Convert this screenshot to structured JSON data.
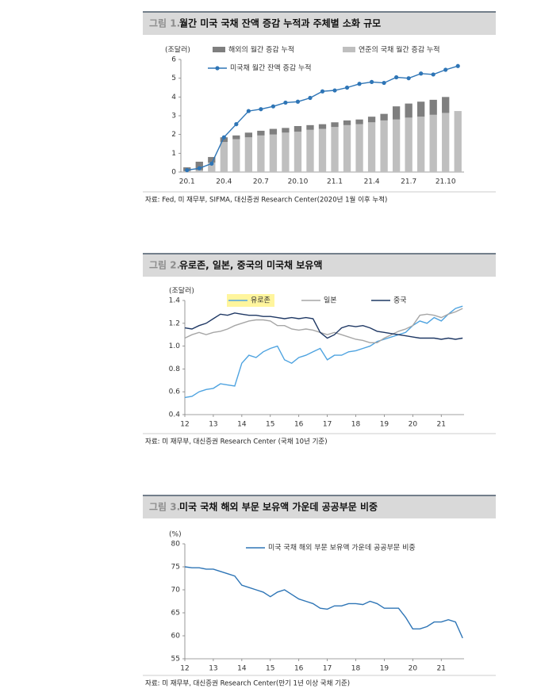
{
  "chart_data": [
    {
      "type": "bar",
      "figure_label": "그림 1.",
      "title": "월간 미국 국채 잔액 증감 누적과 주체별 소화 규모",
      "unit_label": "(조달러)",
      "source": "자료: Fed, 미 재무부, SIFMA, 대신증권 Research Center(2020년 1월 이후 누적)",
      "categories": [
        "20.1",
        null,
        null,
        "20.4",
        null,
        null,
        "20.7",
        null,
        null,
        "20.10",
        null,
        null,
        "21.1",
        null,
        null,
        "21.4",
        null,
        null,
        "21.7",
        null,
        null,
        "21.10",
        null
      ],
      "series": [
        {
          "name": "연준의 국채 월간 증감 누적",
          "type": "bar",
          "color": "#bfbfbf",
          "values": [
            0.05,
            0.1,
            0.5,
            1.6,
            1.75,
            1.85,
            1.95,
            2.0,
            2.1,
            2.15,
            2.25,
            2.3,
            2.4,
            2.5,
            2.55,
            2.65,
            2.75,
            2.8,
            2.9,
            2.95,
            3.05,
            3.15,
            3.25
          ]
        },
        {
          "name": "해외의 월간 증감 누적",
          "type": "bar",
          "color": "#7f7f7f",
          "values": [
            0.2,
            0.45,
            0.3,
            0.25,
            0.2,
            0.25,
            0.25,
            0.3,
            0.25,
            0.3,
            0.25,
            0.25,
            0.25,
            0.25,
            0.25,
            0.3,
            0.35,
            0.7,
            0.75,
            0.8,
            0.8,
            0.85,
            null
          ]
        },
        {
          "name": "미국채 월간 잔액 증감 누적",
          "type": "line",
          "markers": true,
          "color": "#2e75b6",
          "values": [
            0.1,
            0.2,
            0.45,
            1.85,
            2.55,
            3.25,
            3.35,
            3.5,
            3.7,
            3.75,
            3.95,
            4.3,
            4.35,
            4.5,
            4.7,
            4.8,
            4.75,
            5.05,
            5.0,
            5.25,
            5.2,
            5.45,
            5.65
          ]
        }
      ],
      "ylim": [
        0,
        6
      ],
      "yticks": [
        0,
        1,
        2,
        3,
        4,
        5,
        6
      ],
      "grid": false
    },
    {
      "type": "line",
      "figure_label": "그림 2.",
      "title": "유로존, 일본, 중국의 미국채 보유액",
      "unit_label": "(조달러)",
      "source": "자료: 미 재무부, 대신증권 Research Center (국채 10년 기준)",
      "x": [
        12,
        12.25,
        12.5,
        12.75,
        13,
        13.25,
        13.5,
        13.75,
        14,
        14.25,
        14.5,
        14.75,
        15,
        15.25,
        15.5,
        15.75,
        16,
        16.25,
        16.5,
        16.75,
        17,
        17.25,
        17.5,
        17.75,
        18,
        18.25,
        18.5,
        18.75,
        19,
        19.25,
        19.5,
        19.75,
        20,
        20.25,
        20.5,
        20.75,
        21,
        21.25,
        21.5,
        21.75
      ],
      "series": [
        {
          "name": "유로존",
          "color": "#4ea3e0",
          "values": [
            0.55,
            0.56,
            0.6,
            0.62,
            0.63,
            0.67,
            0.66,
            0.65,
            0.85,
            0.92,
            0.9,
            0.95,
            0.98,
            1.0,
            0.88,
            0.85,
            0.9,
            0.92,
            0.95,
            0.98,
            0.88,
            0.92,
            0.92,
            0.95,
            0.96,
            0.98,
            1.0,
            1.04,
            1.06,
            1.08,
            1.1,
            1.12,
            1.18,
            1.22,
            1.2,
            1.25,
            1.22,
            1.28,
            1.33,
            1.35
          ]
        },
        {
          "name": "일본",
          "color": "#a6a6a6",
          "values": [
            1.07,
            1.1,
            1.12,
            1.1,
            1.12,
            1.13,
            1.15,
            1.18,
            1.2,
            1.22,
            1.23,
            1.23,
            1.22,
            1.18,
            1.18,
            1.15,
            1.14,
            1.15,
            1.14,
            1.12,
            1.1,
            1.12,
            1.1,
            1.08,
            1.06,
            1.05,
            1.03,
            1.03,
            1.07,
            1.1,
            1.13,
            1.15,
            1.18,
            1.27,
            1.28,
            1.27,
            1.25,
            1.28,
            1.3,
            1.33
          ]
        },
        {
          "name": "중국",
          "color": "#1f3864",
          "values": [
            1.16,
            1.15,
            1.18,
            1.2,
            1.24,
            1.28,
            1.27,
            1.29,
            1.28,
            1.27,
            1.27,
            1.26,
            1.26,
            1.25,
            1.24,
            1.25,
            1.24,
            1.25,
            1.24,
            1.12,
            1.07,
            1.1,
            1.16,
            1.18,
            1.17,
            1.18,
            1.16,
            1.13,
            1.12,
            1.11,
            1.1,
            1.09,
            1.08,
            1.07,
            1.07,
            1.07,
            1.06,
            1.07,
            1.06,
            1.07
          ]
        }
      ],
      "xlim": [
        12,
        21.8
      ],
      "xticks": [
        12,
        13,
        14,
        15,
        16,
        17,
        18,
        19,
        20,
        21
      ],
      "ylim": [
        0.4,
        1.4
      ],
      "yticks": [
        0.4,
        0.6,
        0.8,
        {
          "value": 1.0,
          "label": "1.0"
        },
        1.2,
        1.4
      ],
      "grid": false
    },
    {
      "type": "line",
      "figure_label": "그림 3.",
      "title": "미국 국채 해외 부문 보유액 가운데 공공부문 비중",
      "unit_label": "(%)",
      "source": "자료: 미 재무부, 대신증권 Research Center(만기 1년 이상 국채 기준)",
      "x": [
        12,
        12.25,
        12.5,
        12.75,
        13,
        13.25,
        13.5,
        13.75,
        14,
        14.25,
        14.5,
        14.75,
        15,
        15.25,
        15.5,
        15.75,
        16,
        16.25,
        16.5,
        16.75,
        17,
        17.25,
        17.5,
        17.75,
        18,
        18.25,
        18.5,
        18.75,
        19,
        19.25,
        19.5,
        19.75,
        20,
        20.25,
        20.5,
        20.75,
        21,
        21.25,
        21.5,
        21.75
      ],
      "series": [
        {
          "name": "미국 국채 해외 부문 보유액 가운데 공공부문 비중",
          "color": "#2e75b6",
          "values": [
            75,
            74.8,
            74.8,
            74.5,
            74.5,
            74,
            73.5,
            73,
            71,
            70.5,
            70,
            69.5,
            68.5,
            69.5,
            70,
            69,
            68,
            67.5,
            67,
            66,
            65.8,
            66.5,
            66.5,
            67,
            67,
            66.8,
            67.5,
            67,
            66,
            66,
            66,
            64,
            61.5,
            61.5,
            62,
            63,
            63,
            63.5,
            63,
            59.5
          ]
        }
      ],
      "xlim": [
        12,
        21.8
      ],
      "xticks": [
        12,
        13,
        14,
        15,
        16,
        17,
        18,
        19,
        20,
        21
      ],
      "ylim": [
        55,
        80
      ],
      "yticks": [
        55,
        60,
        65,
        70,
        75,
        80
      ],
      "grid": false
    }
  ]
}
